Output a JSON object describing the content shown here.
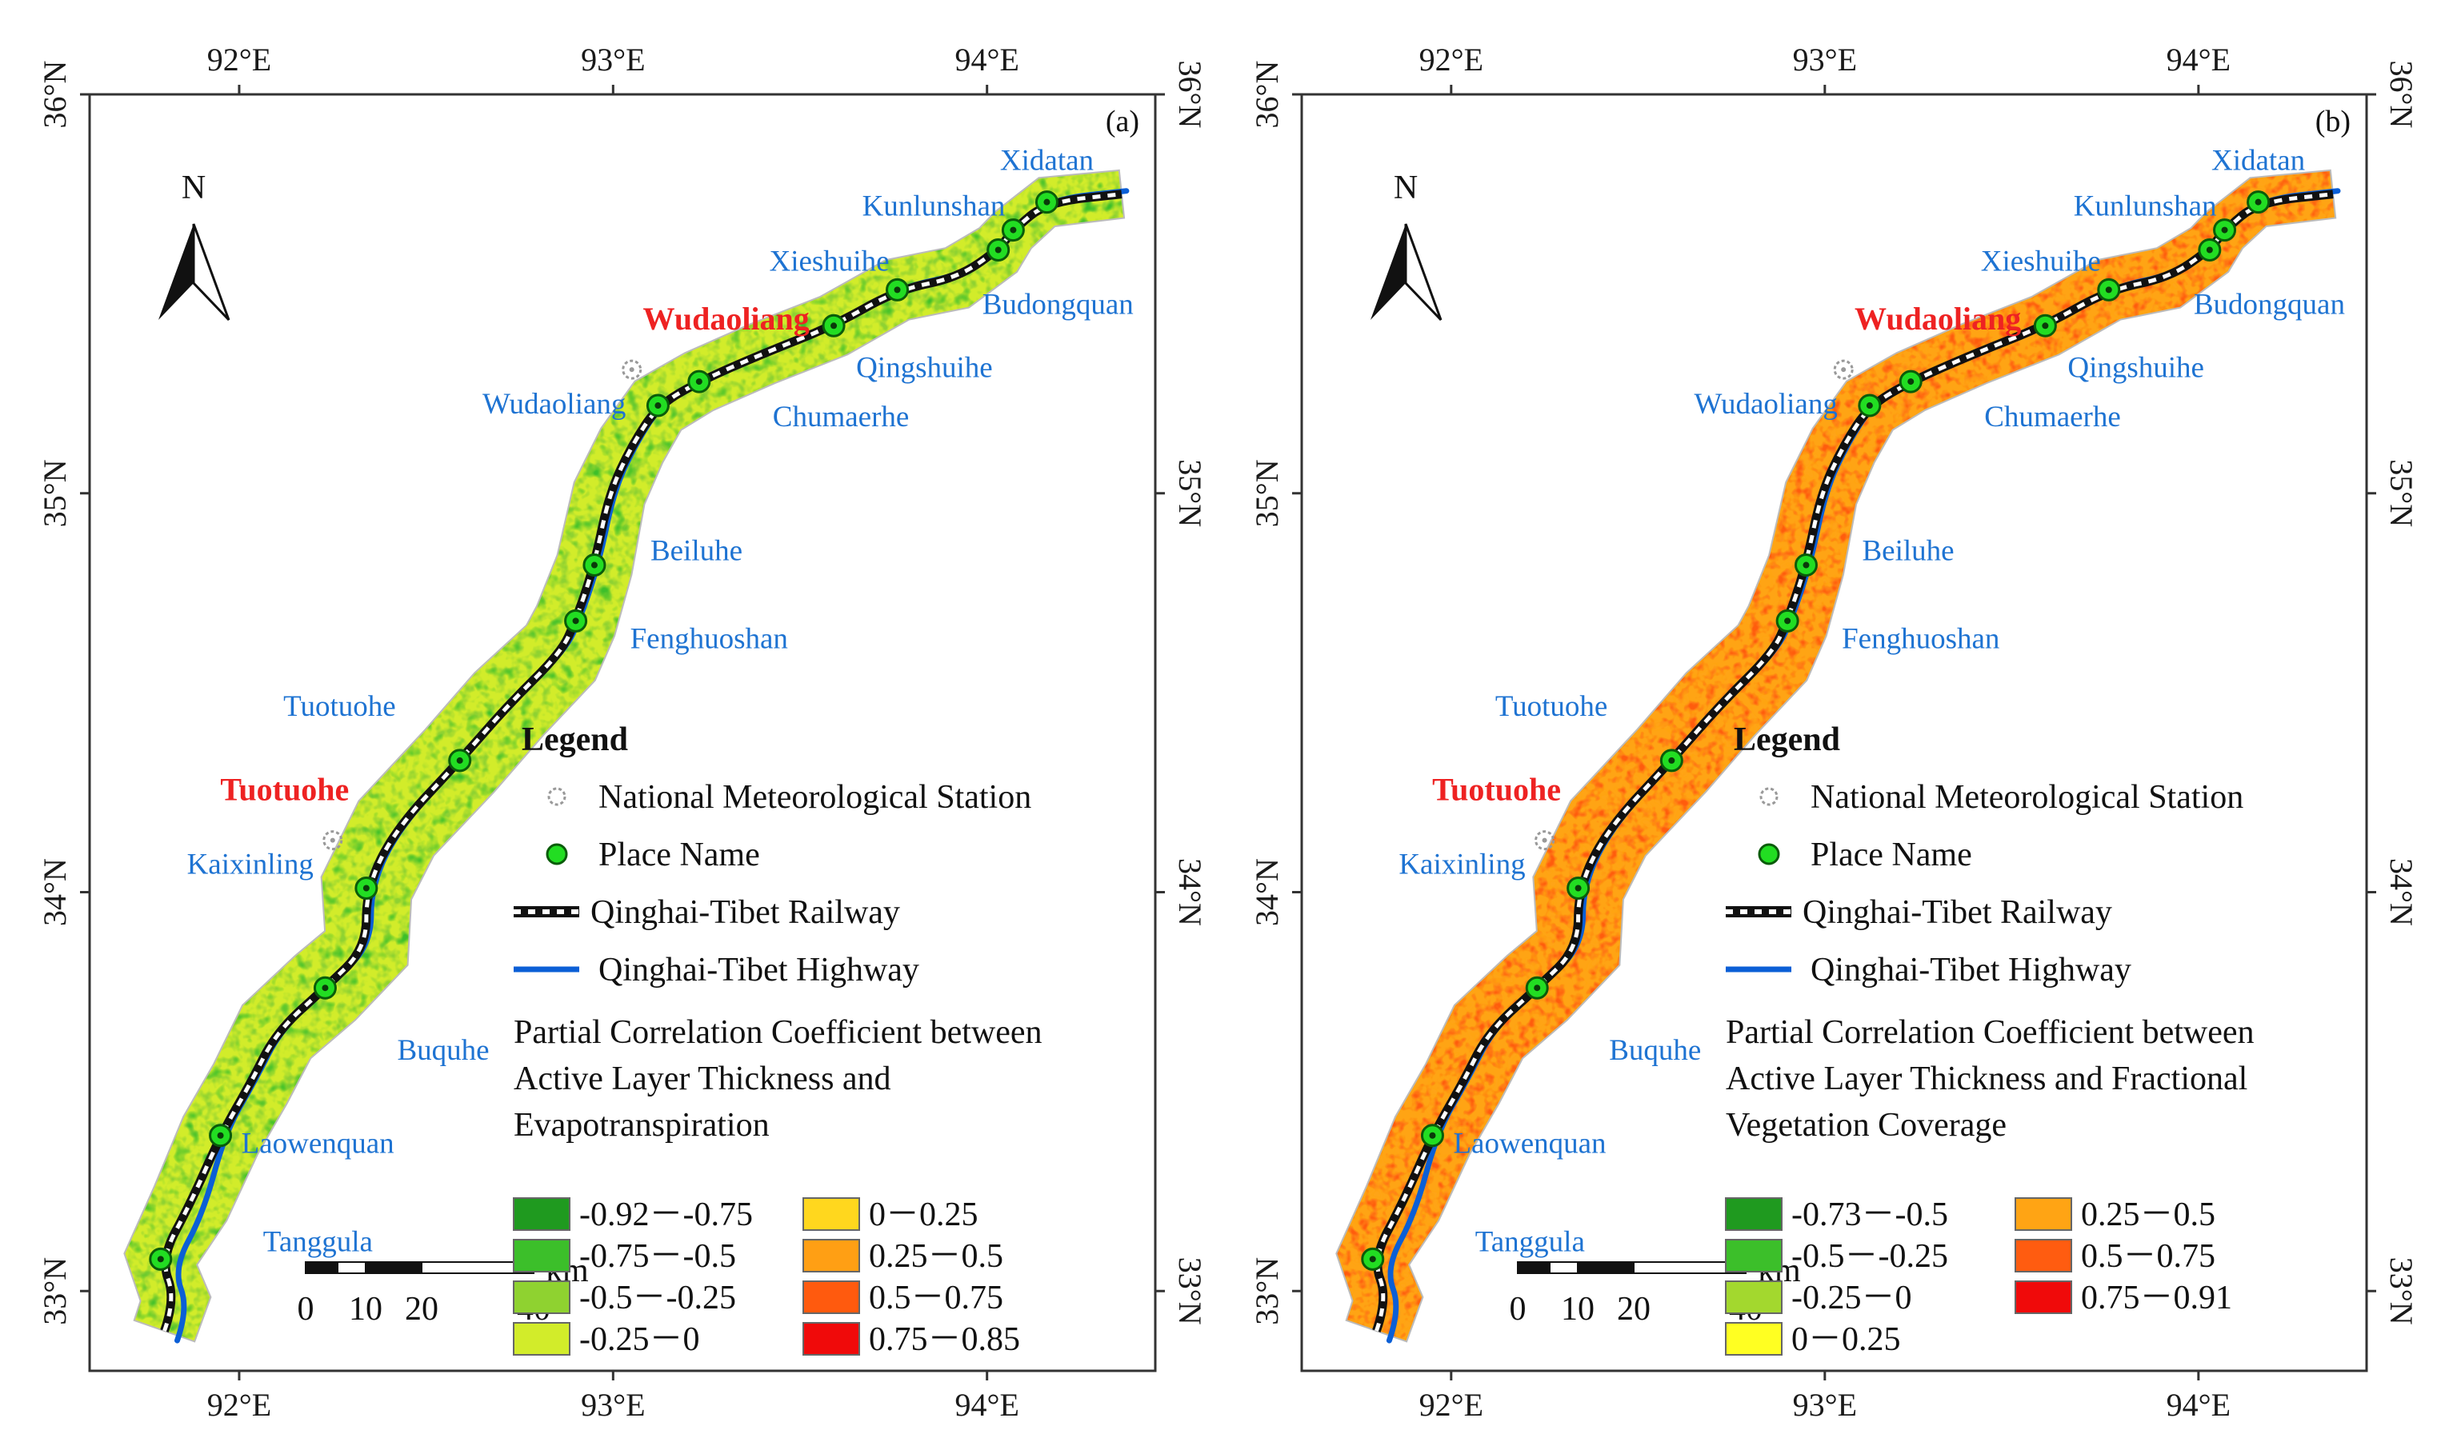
{
  "figure": {
    "lon_ticks": [
      "92°E",
      "93°E",
      "94°E"
    ],
    "lat_ticks": [
      "33°N",
      "34°N",
      "35°N",
      "36°N"
    ],
    "lon_range": [
      91.6,
      94.45
    ],
    "lat_range": [
      32.8,
      36.0
    ]
  },
  "panels": [
    {
      "label": "(a)",
      "north": "N",
      "scale_unit": "km",
      "scale_ticks": [
        "0",
        "10",
        "20",
        "40"
      ],
      "stations": [
        {
          "name": "Wudaoliang",
          "lon": 93.05,
          "lat": 35.31
        },
        {
          "name": "Tuotuohe",
          "lon": 92.25,
          "lat": 34.13
        }
      ],
      "places": [
        {
          "name": "Xidatan",
          "lon": 94.16,
          "lat": 35.73
        },
        {
          "name": "Kunlunshan",
          "lon": 94.07,
          "lat": 35.66
        },
        {
          "name": "Xieshuihe",
          "lon": 93.76,
          "lat": 35.51
        },
        {
          "name": "Budongquan",
          "lon": 94.03,
          "lat": 35.61
        },
        {
          "name": "Qingshuihe",
          "lon": 93.59,
          "lat": 35.42
        },
        {
          "name": "Chumaerhe",
          "lon": 93.23,
          "lat": 35.28
        },
        {
          "name": "Wudaoliang",
          "lon": 93.12,
          "lat": 35.22
        },
        {
          "name": "Beiluhe",
          "lon": 92.95,
          "lat": 34.82
        },
        {
          "name": "Fenghuoshan",
          "lon": 92.9,
          "lat": 34.68
        },
        {
          "name": "Tuotuohe",
          "lon": 92.59,
          "lat": 34.33
        },
        {
          "name": "Kaixinling",
          "lon": 92.34,
          "lat": 34.01
        },
        {
          "name": "Buquhe",
          "lon": 92.23,
          "lat": 33.76
        },
        {
          "name": "Laowenquan",
          "lon": 91.95,
          "lat": 33.39
        },
        {
          "name": "Tanggula",
          "lon": 91.79,
          "lat": 33.08
        }
      ],
      "legend": {
        "title": "Legend",
        "items": [
          "National Meteorological Station",
          "Place Name",
          "Qinghai-Tibet Railway",
          "Qinghai-Tibet Highway"
        ],
        "ramp_title": [
          "Partial Correlation Coefficient between",
          "Active Layer Thickness and",
          "Evapotranspiration"
        ],
        "classes": [
          {
            "label": "-0.92－-0.75",
            "color": "#1f9a1f"
          },
          {
            "label": "-0.75－-0.5",
            "color": "#3cbf2a"
          },
          {
            "label": "-0.5－-0.25",
            "color": "#8fd230"
          },
          {
            "label": "-0.25－0",
            "color": "#d2ec2a"
          },
          {
            "label": "0－0.25",
            "color": "#ffd71e"
          },
          {
            "label": "0.25－0.5",
            "color": "#ff9f14"
          },
          {
            "label": "0.5－0.75",
            "color": "#ff5a0e"
          },
          {
            "label": "0.75－0.85",
            "color": "#f00a0a"
          }
        ]
      }
    },
    {
      "label": "(b)",
      "north": "N",
      "scale_unit": "km",
      "scale_ticks": [
        "0",
        "10",
        "20",
        "40"
      ],
      "stations": [
        {
          "name": "Wudaoliang",
          "lon": 93.05,
          "lat": 35.31
        },
        {
          "name": "Tuotuohe",
          "lon": 92.25,
          "lat": 34.13
        }
      ],
      "places": [
        {
          "name": "Xidatan",
          "lon": 94.16,
          "lat": 35.73
        },
        {
          "name": "Kunlunshan",
          "lon": 94.07,
          "lat": 35.66
        },
        {
          "name": "Xieshuihe",
          "lon": 93.76,
          "lat": 35.51
        },
        {
          "name": "Budongquan",
          "lon": 94.03,
          "lat": 35.61
        },
        {
          "name": "Qingshuihe",
          "lon": 93.59,
          "lat": 35.42
        },
        {
          "name": "Chumaerhe",
          "lon": 93.23,
          "lat": 35.28
        },
        {
          "name": "Wudaoliang",
          "lon": 93.12,
          "lat": 35.22
        },
        {
          "name": "Beiluhe",
          "lon": 92.95,
          "lat": 34.82
        },
        {
          "name": "Fenghuoshan",
          "lon": 92.9,
          "lat": 34.68
        },
        {
          "name": "Tuotuohe",
          "lon": 92.59,
          "lat": 34.33
        },
        {
          "name": "Kaixinling",
          "lon": 92.34,
          "lat": 34.01
        },
        {
          "name": "Buquhe",
          "lon": 92.23,
          "lat": 33.76
        },
        {
          "name": "Laowenquan",
          "lon": 91.95,
          "lat": 33.39
        },
        {
          "name": "Tanggula",
          "lon": 91.79,
          "lat": 33.08
        }
      ],
      "legend": {
        "title": "Legend",
        "items": [
          "National Meteorological Station",
          "Place Name",
          "Qinghai-Tibet Railway",
          "Qinghai-Tibet Highway"
        ],
        "ramp_title": [
          "Partial Correlation Coefficient between",
          "Active Layer Thickness and Fractional",
          "Vegetation Coverage"
        ],
        "classes": [
          {
            "label": "-0.73－-0.5",
            "color": "#1f9a1f"
          },
          {
            "label": "-0.5－-0.25",
            "color": "#3cbf2a"
          },
          {
            "label": "-0.25－0",
            "color": "#a3d82e"
          },
          {
            "label": "0－0.25",
            "color": "#ffff22"
          },
          {
            "label": "0.25－0.5",
            "color": "#ffa414"
          },
          {
            "label": "0.5－0.75",
            "color": "#ff5c10"
          },
          {
            "label": "0.75－0.91",
            "color": "#f00a0a"
          }
        ]
      }
    }
  ]
}
